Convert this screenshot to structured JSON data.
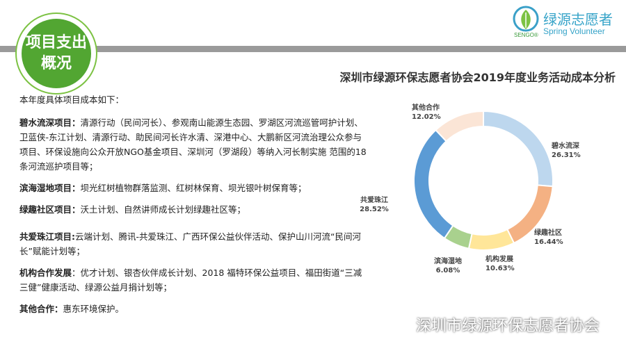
{
  "badge": {
    "line1": "项目支出",
    "line2": "概况"
  },
  "logo": {
    "cn": "绿源志愿者",
    "en": "Spring Volunteer",
    "sengo": "SENGO®"
  },
  "chart_title": "深圳市绿源环保志愿者协会2019年度业务活动成本分析",
  "intro": "本年度具体项目成本如下：",
  "items": [
    {
      "label": "碧水流深项目：",
      "text": "清源行动（民间河长）、参观南山能源生态园、罗湖区河流巡管呵护计划、卫蓝侠-东江计划、清源行动、助民间河长许水清、深港中心、大鹏新区河流治理公众参与项目、环保设施向公众开放NGO基金项目、深圳河（罗湖段）等纳入河长制实施 范围的18条河流巡护项目等；"
    },
    {
      "label": "滨海湿地项目：",
      "text": "坝光红树植物群落监测、红树林保育、坝光银叶树保育等；"
    },
    {
      "label": "绿趣社区项目：",
      "text": "沃土计划、自然讲师成长计划绿趣社区等；"
    },
    {
      "label": "共爱珠江项目:",
      "text": "云端计划、腾讯-共爱珠江、广西环保公益伙伴活动、保护山川河流“民间河长”赋能计划等；"
    },
    {
      "label": "机构合作发展",
      "text": "：优才计划、银杏伙伴成长计划、2018 福特环保公益项目、福田街道“三减三健”健康活动、绿源公益月捐计划等；"
    },
    {
      "label": "其他合作：",
      "text": "惠东环境保护。"
    }
  ],
  "chart_data": {
    "type": "pie",
    "style": "donut",
    "title": "深圳市绿源环保志愿者协会2019年度业务活动成本分析",
    "slices": [
      {
        "name": "碧水流深",
        "value": 26.31,
        "label": "26.31%",
        "color": "#bdd7ee"
      },
      {
        "name": "绿趣社区",
        "value": 16.44,
        "label": "16.44%",
        "color": "#f4b183"
      },
      {
        "name": "机构发展",
        "value": 10.63,
        "label": "10.63%",
        "color": "#ffe699"
      },
      {
        "name": "滨海湿地",
        "value": 6.08,
        "label": "6.08%",
        "color": "#a9d18e"
      },
      {
        "name": "共爱珠江",
        "value": 28.52,
        "label": "28.52%",
        "color": "#5b9bd5"
      },
      {
        "name": "其他合作",
        "value": 12.02,
        "label": "12.02%",
        "color": "#fbe5d6"
      }
    ]
  },
  "footer": {
    "text": "深圳市绿源环保志愿者协会",
    "icon": "wechat-icon"
  }
}
